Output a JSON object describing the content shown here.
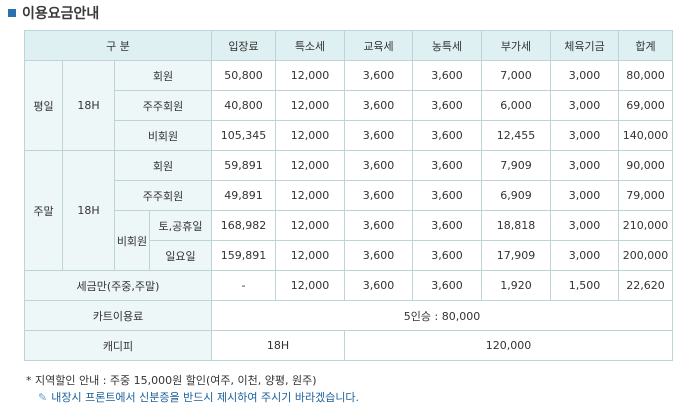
{
  "page_title": "이용요금안내",
  "columns": [
    "구 분",
    "입장료",
    "특소세",
    "교육세",
    "농특세",
    "부가세",
    "체육기금",
    "합계"
  ],
  "weekday": {
    "label": "평일",
    "time": "18H",
    "rows": [
      {
        "type": "회원",
        "values": [
          "50,800",
          "12,000",
          "3,600",
          "3,600",
          "7,000",
          "3,000",
          "80,000"
        ]
      },
      {
        "type": "주주회원",
        "values": [
          "40,800",
          "12,000",
          "3,600",
          "3,600",
          "6,000",
          "3,000",
          "69,000"
        ]
      },
      {
        "type": "비회원",
        "values": [
          "105,345",
          "12,000",
          "3,600",
          "3,600",
          "12,455",
          "3,000",
          "140,000"
        ]
      }
    ]
  },
  "weekend": {
    "label": "주말",
    "time": "18H",
    "rows": [
      {
        "type": "회원",
        "values": [
          "59,891",
          "12,000",
          "3,600",
          "3,600",
          "7,909",
          "3,000",
          "90,000"
        ]
      },
      {
        "type": "주주회원",
        "values": [
          "49,891",
          "12,000",
          "3,600",
          "3,600",
          "6,909",
          "3,000",
          "79,000"
        ]
      }
    ],
    "nonmember_label": "비회원",
    "nonmember_rows": [
      {
        "type": "토,공휴일",
        "values": [
          "168,982",
          "12,000",
          "3,600",
          "3,600",
          "18,818",
          "3,000",
          "210,000"
        ]
      },
      {
        "type": "일요일",
        "values": [
          "159,891",
          "12,000",
          "3,600",
          "3,600",
          "17,909",
          "3,000",
          "200,000"
        ]
      }
    ]
  },
  "tax_only": {
    "label": "세금만(주중,주말)",
    "values": [
      "-",
      "12,000",
      "3,600",
      "3,600",
      "1,920",
      "1,500",
      "22,620"
    ]
  },
  "cart": {
    "label": "카트이용료",
    "value": "5인승 : 80,000"
  },
  "caddie": {
    "label": "캐디피",
    "time": "18H",
    "value": "120,000"
  },
  "notes": {
    "line1": "* 지역할인 안내 : 주중 15,000원 할인(여주, 이천, 양평, 원주)",
    "line2": "내장시 프론트에서 신분증을 반드시 제시하여 주시기 바라겠습니다."
  }
}
